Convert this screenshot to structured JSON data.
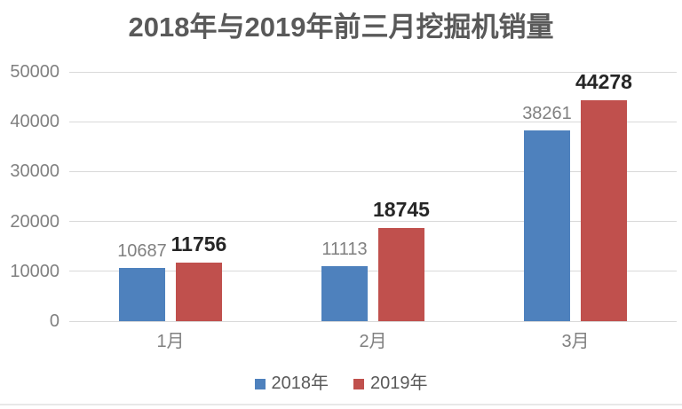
{
  "chart_data": {
    "type": "bar",
    "title": "2018年与2019年前三月挖掘机销量",
    "categories": [
      "1月",
      "2月",
      "3月"
    ],
    "series": [
      {
        "name": "2018年",
        "color": "#4E81BD",
        "values": [
          10687,
          11113,
          38261
        ]
      },
      {
        "name": "2019年",
        "color": "#C0504D",
        "values": [
          11756,
          18745,
          44278
        ]
      }
    ],
    "ylim": [
      0,
      50000
    ],
    "yticks": [
      0,
      10000,
      20000,
      30000,
      40000,
      50000
    ],
    "grid": "horizontal",
    "legend_position": "bottom",
    "xlabel": "",
    "ylabel": ""
  },
  "styles": {
    "title_color": "#595959",
    "tick_label_color": "#808080",
    "gridline_color": "#D9D9D9",
    "series0_value_label_color": "#808080",
    "series1_value_label_color": "#262626",
    "legend_text_color": "#595959"
  }
}
